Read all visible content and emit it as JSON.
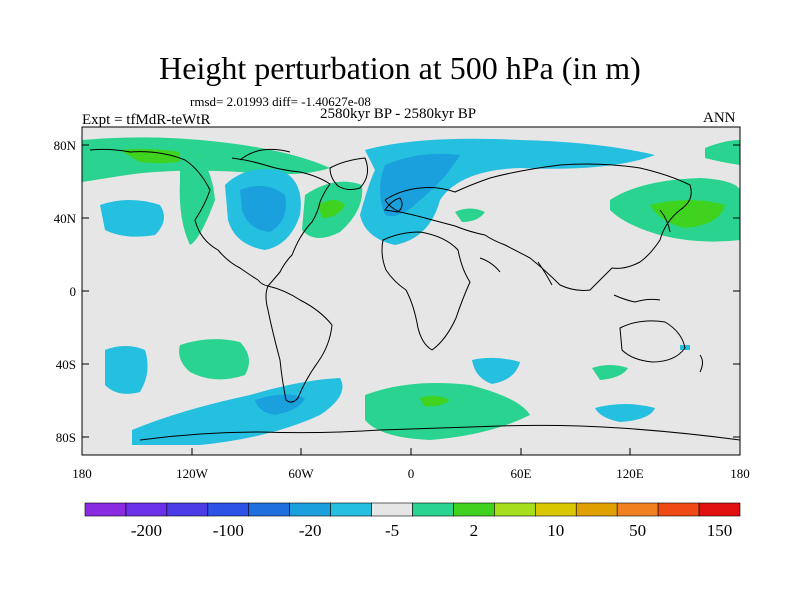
{
  "title": "Height perturbation at 500 hPa (in m)",
  "stats": {
    "rmsd_text": "rmsd= 2.01993  diff= -1.40627e-08"
  },
  "period": "2580kyr BP - 2580kyr BP",
  "experiment": "Expt = tfMdR-teWtR",
  "season": "ANN",
  "axes": {
    "x_ticks": [
      "180",
      "120W",
      "60W",
      "0",
      "60E",
      "120E",
      "180"
    ],
    "y_ticks": [
      "80N",
      "40N",
      "0",
      "40S",
      "80S"
    ]
  },
  "colorbar": {
    "colors": [
      "#8a2be2",
      "#6a31e8",
      "#4b3ce6",
      "#2c52e6",
      "#1f6fde",
      "#1aa0dd",
      "#25bfe0",
      "#e6e6e6",
      "#2ad38f",
      "#3fd31f",
      "#a6de1c",
      "#d9c800",
      "#e0a000",
      "#f08020",
      "#ef4a14",
      "#e01010"
    ],
    "labels": [
      "-200",
      "-100",
      "-20",
      "-5",
      "2",
      "10",
      "50",
      "150"
    ],
    "neutral_color": "#e6e6e6",
    "blue_color": "#25bfe0",
    "blue_dark_color": "#1aa0dd",
    "green_color": "#2ad38f",
    "green_dark_color": "#3fd31f"
  },
  "map_region": {
    "lon_range": [
      -180,
      180
    ],
    "lat_range": [
      -90,
      90
    ]
  }
}
